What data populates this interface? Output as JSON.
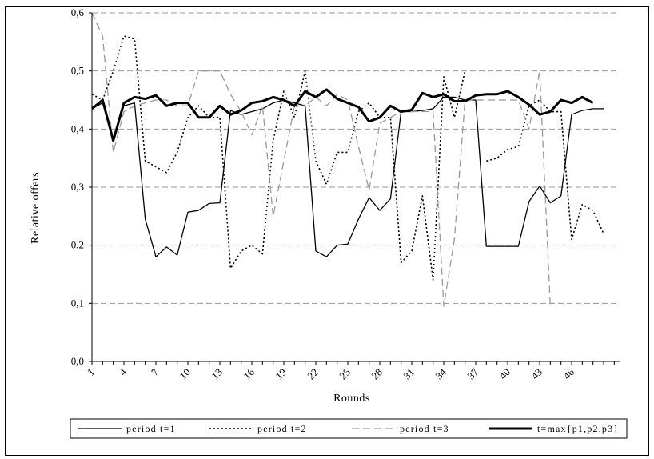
{
  "chart_data": {
    "type": "line",
    "xlabel": "Rounds",
    "ylabel": "Relative offers",
    "ylim": [
      0,
      0.6
    ],
    "y_ticks": [
      "0,0",
      "0,1",
      "0,2",
      "0,3",
      "0,4",
      "0,5",
      "0,6"
    ],
    "x_ticks": [
      1,
      4,
      7,
      10,
      13,
      16,
      19,
      22,
      25,
      28,
      31,
      34,
      37,
      40,
      43,
      46
    ],
    "grid": "horizontal dashed",
    "legend_position": "bottom",
    "x": [
      1,
      2,
      3,
      4,
      5,
      6,
      7,
      8,
      9,
      10,
      11,
      12,
      13,
      14,
      15,
      16,
      17,
      18,
      19,
      20,
      21,
      22,
      23,
      24,
      25,
      26,
      27,
      28,
      29,
      30,
      31,
      32,
      33,
      34,
      35,
      36,
      37,
      38,
      39,
      40,
      41,
      42,
      43,
      44,
      45,
      46,
      47,
      48,
      49,
      50
    ],
    "series": [
      {
        "name": "period t=1",
        "style": "solid-thin",
        "color": "#000000",
        "values": [
          0.435,
          0.445,
          0.38,
          0.44,
          0.445,
          0.245,
          0.18,
          0.197,
          0.183,
          0.257,
          0.26,
          0.272,
          0.273,
          0.432,
          0.425,
          0.43,
          0.435,
          0.445,
          0.45,
          0.445,
          0.44,
          0.19,
          0.18,
          0.2,
          0.202,
          0.245,
          0.282,
          0.26,
          0.28,
          0.43,
          0.43,
          0.432,
          0.435,
          0.455,
          0.455,
          0.45,
          0.45,
          0.198,
          0.198,
          0.198,
          0.198,
          0.275,
          0.302,
          0.273,
          0.285,
          0.425,
          0.432,
          0.435,
          0.435,
          null
        ]
      },
      {
        "name": "period t=2",
        "style": "dotted",
        "color": "#000000",
        "values": [
          0.46,
          0.45,
          0.5,
          0.56,
          0.555,
          0.345,
          0.335,
          0.325,
          0.36,
          0.42,
          0.44,
          0.42,
          0.42,
          0.16,
          0.19,
          0.2,
          0.185,
          0.38,
          0.465,
          0.42,
          0.5,
          0.345,
          0.305,
          0.36,
          0.36,
          0.43,
          0.445,
          0.42,
          0.42,
          0.17,
          0.19,
          0.285,
          0.14,
          0.49,
          0.42,
          0.5,
          null,
          0.345,
          0.35,
          0.365,
          0.37,
          0.44,
          0.45,
          0.43,
          0.43,
          0.21,
          0.27,
          0.26,
          0.22,
          null
        ]
      },
      {
        "name": "period t=3",
        "style": "dashed",
        "color": "#999999",
        "values": [
          0.6,
          0.56,
          0.36,
          0.43,
          0.44,
          0.445,
          0.45,
          0.45,
          0.44,
          0.44,
          0.5,
          0.5,
          0.5,
          0.46,
          0.43,
          0.39,
          0.44,
          0.25,
          0.345,
          0.44,
          0.44,
          0.455,
          0.44,
          0.46,
          0.45,
          0.37,
          0.295,
          0.41,
          0.42,
          0.43,
          0.43,
          0.43,
          0.43,
          0.095,
          0.21,
          0.45,
          0.45,
          0.45,
          0.45,
          0.45,
          0.45,
          0.4,
          0.5,
          0.095,
          null,
          null,
          null,
          null,
          null,
          null
        ]
      },
      {
        "name": "t=max{p1,p2,p3}",
        "style": "solid-thick",
        "color": "#000000",
        "values": [
          0.435,
          0.45,
          0.38,
          0.445,
          0.455,
          0.452,
          0.458,
          0.44,
          0.445,
          0.445,
          0.42,
          0.42,
          0.44,
          0.425,
          0.432,
          0.445,
          0.448,
          0.455,
          0.45,
          0.44,
          0.465,
          0.455,
          0.468,
          0.452,
          0.445,
          0.438,
          0.413,
          0.42,
          0.44,
          0.43,
          0.433,
          0.462,
          0.455,
          0.46,
          0.448,
          0.448,
          0.458,
          0.46,
          0.46,
          0.465,
          0.455,
          0.442,
          0.425,
          0.43,
          0.45,
          0.445,
          0.455,
          0.445,
          null,
          null
        ]
      }
    ]
  }
}
